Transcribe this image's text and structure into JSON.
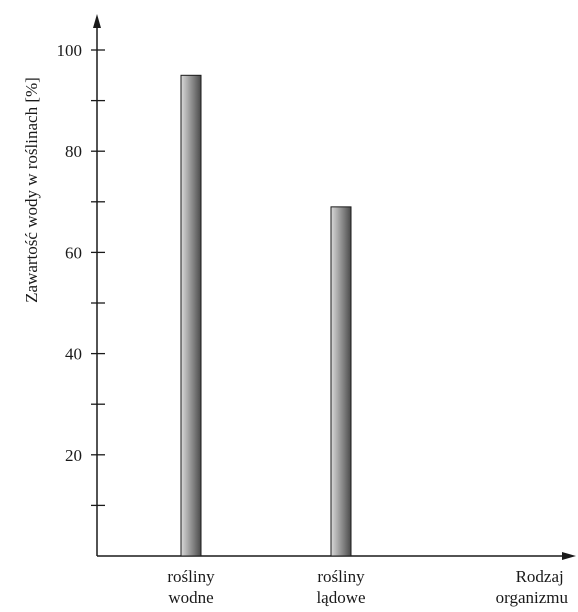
{
  "chart_data": {
    "type": "bar",
    "categories": [
      [
        "rośliny",
        "wodne"
      ],
      [
        "rośliny",
        "lądowe"
      ]
    ],
    "values": [
      95,
      69
    ],
    "ylabel": "Zawartość wody w roślinach [%]",
    "xlabel": [
      "Rodzaj",
      "organizmu"
    ],
    "ylim": [
      0,
      100
    ],
    "yticks_labeled": [
      20,
      40,
      60,
      80,
      100
    ],
    "yticks_minor_step": 10,
    "grid": false,
    "legend": "none"
  }
}
